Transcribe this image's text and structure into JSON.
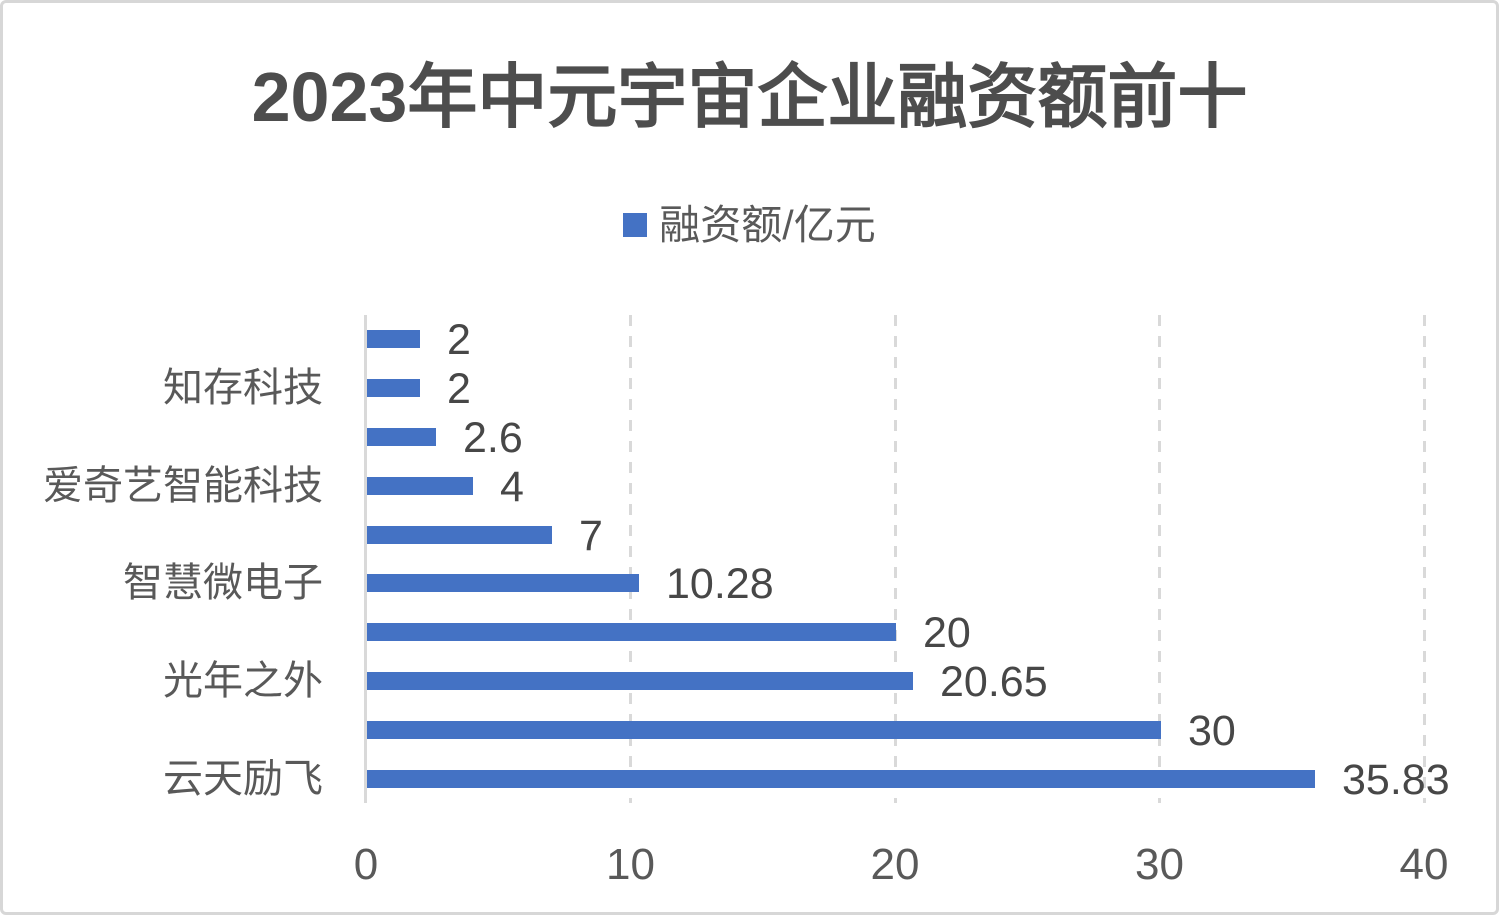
{
  "chart_data": {
    "type": "bar",
    "orientation": "horizontal",
    "title": "2023年中元宇宙企业融资额前十",
    "legend": {
      "label": "融资额/亿元",
      "swatch_color": "#4472C4",
      "position": "top-center"
    },
    "categories": [
      "",
      "知存科技",
      "",
      "爱奇艺智能科技",
      "",
      "智慧微电子",
      "",
      "光年之外",
      "",
      "云天励飞"
    ],
    "series": [
      {
        "name": "融资额/亿元",
        "values": [
          2,
          2,
          2.6,
          4,
          7,
          10.28,
          20,
          20.65,
          30,
          35.83
        ]
      }
    ],
    "value_labels": [
      "2",
      "2",
      "2.6",
      "4",
      "7",
      "10.28",
      "20",
      "20.65",
      "30",
      "35.83"
    ],
    "xlabel": "",
    "ylabel": "",
    "xlim": [
      0,
      40
    ],
    "x_ticks": [
      "0",
      "10",
      "20",
      "30",
      "40"
    ],
    "grid": "vertical-dashed",
    "bar_color": "#4472C4",
    "gridline_color": "#d9d9d9",
    "axis_label_color": "#595959",
    "data_label_color": "#474747",
    "title_color": "#4d4d4d"
  }
}
